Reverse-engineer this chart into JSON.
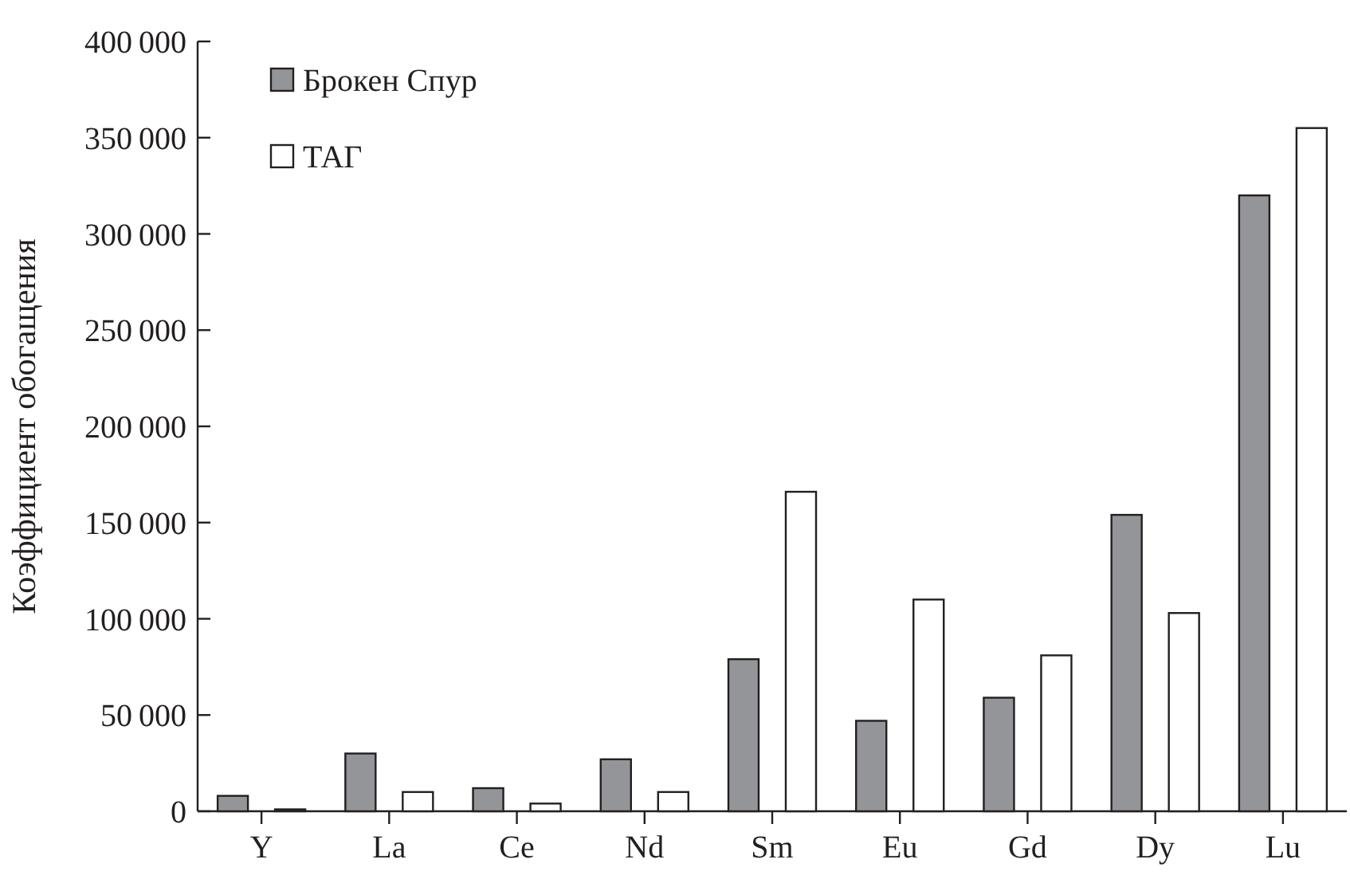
{
  "chart_data": {
    "type": "bar",
    "ylabel": "Коэффициент обогащения",
    "categories": [
      "Y",
      "La",
      "Ce",
      "Nd",
      "Sm",
      "Eu",
      "Gd",
      "Dy",
      "Lu"
    ],
    "series": [
      {
        "name": "Брокен Спур",
        "color": "#939598",
        "values": [
          8000,
          30000,
          12000,
          27000,
          79000,
          47000,
          59000,
          154000,
          320000
        ]
      },
      {
        "name": "ТАГ",
        "color": "#ffffff",
        "values": [
          1000,
          10000,
          4000,
          10000,
          166000,
          110000,
          81000,
          103000,
          355000
        ]
      }
    ],
    "ylim": [
      0,
      400000
    ],
    "yticks": [
      0,
      50000,
      100000,
      150000,
      200000,
      250000,
      300000,
      350000,
      400000
    ],
    "legend": "top left"
  }
}
